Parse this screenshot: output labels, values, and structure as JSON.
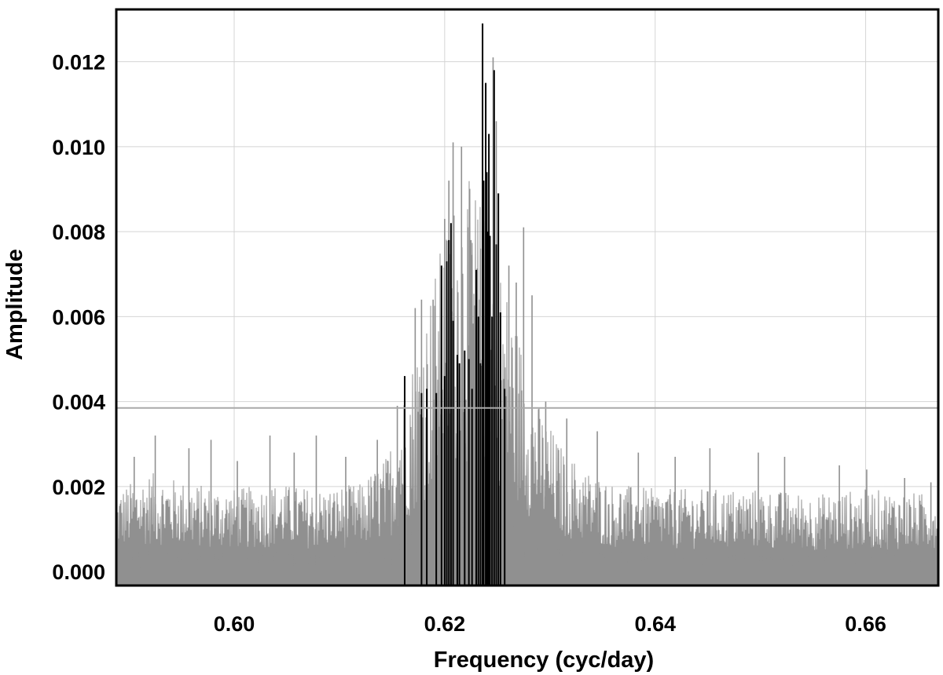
{
  "chart_data": {
    "type": "line",
    "title": "",
    "xlabel": "Frequency (cyc/day)",
    "ylabel": "Amplitude",
    "xlim": [
      0.5888,
      0.6669
    ],
    "ylim": [
      -0.00033,
      0.01323
    ],
    "x_ticks": [
      0.6,
      0.62,
      0.64,
      0.66
    ],
    "x_tick_labels": [
      "0.60",
      "0.62",
      "0.64",
      "0.66"
    ],
    "y_ticks": [
      0.0,
      0.002,
      0.004,
      0.006,
      0.008,
      0.01,
      0.012
    ],
    "y_tick_labels": [
      "0.000",
      "0.002",
      "0.004",
      "0.006",
      "0.008",
      "0.010",
      "0.012"
    ],
    "grid": true,
    "threshold": 0.00385,
    "colors": {
      "spectrum": "#909090",
      "peaks": "#000000",
      "threshold": "#aaaaaa",
      "grid": "#d4d4d4",
      "frame": "#000000"
    },
    "spectrum_envelope": [
      [
        0.589,
        0.0015
      ],
      [
        0.592,
        0.0018
      ],
      [
        0.596,
        0.0016
      ],
      [
        0.6,
        0.0015
      ],
      [
        0.604,
        0.0016
      ],
      [
        0.608,
        0.0015
      ],
      [
        0.612,
        0.0016
      ],
      [
        0.6145,
        0.0021
      ],
      [
        0.616,
        0.0032
      ],
      [
        0.618,
        0.0046
      ],
      [
        0.62,
        0.0062
      ],
      [
        0.6215,
        0.0072
      ],
      [
        0.623,
        0.007
      ],
      [
        0.625,
        0.0058
      ],
      [
        0.627,
        0.0044
      ],
      [
        0.629,
        0.003
      ],
      [
        0.631,
        0.0023
      ],
      [
        0.633,
        0.0019
      ],
      [
        0.636,
        0.0016
      ],
      [
        0.64,
        0.0015
      ],
      [
        0.645,
        0.0015
      ],
      [
        0.65,
        0.0015
      ],
      [
        0.655,
        0.0014
      ],
      [
        0.66,
        0.0015
      ],
      [
        0.6669,
        0.0014
      ]
    ],
    "spectrum_spikes": [
      {
        "x": 0.5905,
        "y": 0.0027
      },
      {
        "x": 0.5925,
        "y": 0.0032
      },
      {
        "x": 0.5957,
        "y": 0.0029
      },
      {
        "x": 0.5978,
        "y": 0.0031
      },
      {
        "x": 0.6003,
        "y": 0.0026
      },
      {
        "x": 0.6034,
        "y": 0.0032
      },
      {
        "x": 0.6057,
        "y": 0.0028
      },
      {
        "x": 0.6078,
        "y": 0.0032
      },
      {
        "x": 0.6106,
        "y": 0.0027
      },
      {
        "x": 0.6136,
        "y": 0.0031
      },
      {
        "x": 0.6155,
        "y": 0.0039
      },
      {
        "x": 0.6172,
        "y": 0.0062
      },
      {
        "x": 0.6178,
        "y": 0.0064
      },
      {
        "x": 0.6189,
        "y": 0.0064
      },
      {
        "x": 0.62,
        "y": 0.0083
      },
      {
        "x": 0.6204,
        "y": 0.0092
      },
      {
        "x": 0.6208,
        "y": 0.0101
      },
      {
        "x": 0.6216,
        "y": 0.01
      },
      {
        "x": 0.6222,
        "y": 0.0081
      },
      {
        "x": 0.6225,
        "y": 0.0078
      },
      {
        "x": 0.6234,
        "y": 0.0076
      },
      {
        "x": 0.6246,
        "y": 0.0121
      },
      {
        "x": 0.6249,
        "y": 0.0106
      },
      {
        "x": 0.6261,
        "y": 0.0072
      },
      {
        "x": 0.6268,
        "y": 0.0068
      },
      {
        "x": 0.6275,
        "y": 0.0081
      },
      {
        "x": 0.6283,
        "y": 0.0065
      },
      {
        "x": 0.6296,
        "y": 0.004
      },
      {
        "x": 0.6316,
        "y": 0.0036
      },
      {
        "x": 0.6345,
        "y": 0.0033
      },
      {
        "x": 0.6384,
        "y": 0.0028
      },
      {
        "x": 0.6419,
        "y": 0.0027
      },
      {
        "x": 0.6452,
        "y": 0.0029
      },
      {
        "x": 0.6498,
        "y": 0.0028
      },
      {
        "x": 0.6523,
        "y": 0.0027
      },
      {
        "x": 0.6575,
        "y": 0.0025
      },
      {
        "x": 0.6601,
        "y": 0.0024
      },
      {
        "x": 0.6637,
        "y": 0.0022
      },
      {
        "x": 0.6662,
        "y": 0.0021
      }
    ],
    "peaks": [
      {
        "x": 0.6162,
        "y": 0.0046
      },
      {
        "x": 0.6178,
        "y": 0.0042
      },
      {
        "x": 0.6183,
        "y": 0.0043
      },
      {
        "x": 0.6192,
        "y": 0.0042
      },
      {
        "x": 0.6197,
        "y": 0.0072
      },
      {
        "x": 0.62,
        "y": 0.0046
      },
      {
        "x": 0.6202,
        "y": 0.0073
      },
      {
        "x": 0.6204,
        "y": 0.0078
      },
      {
        "x": 0.6206,
        "y": 0.0082
      },
      {
        "x": 0.6208,
        "y": 0.0059
      },
      {
        "x": 0.6212,
        "y": 0.0051
      },
      {
        "x": 0.6214,
        "y": 0.0049
      },
      {
        "x": 0.6219,
        "y": 0.0052
      },
      {
        "x": 0.6223,
        "y": 0.005
      },
      {
        "x": 0.6226,
        "y": 0.0043
      },
      {
        "x": 0.623,
        "y": 0.0071
      },
      {
        "x": 0.6232,
        "y": 0.006
      },
      {
        "x": 0.6234,
        "y": 0.0049
      },
      {
        "x": 0.6236,
        "y": 0.0129
      },
      {
        "x": 0.6237,
        "y": 0.0092
      },
      {
        "x": 0.6239,
        "y": 0.0115
      },
      {
        "x": 0.624,
        "y": 0.0094
      },
      {
        "x": 0.6241,
        "y": 0.008
      },
      {
        "x": 0.6242,
        "y": 0.0103
      },
      {
        "x": 0.6243,
        "y": 0.0079
      },
      {
        "x": 0.6245,
        "y": 0.006
      },
      {
        "x": 0.6247,
        "y": 0.0118
      },
      {
        "x": 0.6249,
        "y": 0.0077
      },
      {
        "x": 0.6251,
        "y": 0.0089
      },
      {
        "x": 0.6253,
        "y": 0.0061
      },
      {
        "x": 0.6257,
        "y": 0.0043
      }
    ]
  }
}
